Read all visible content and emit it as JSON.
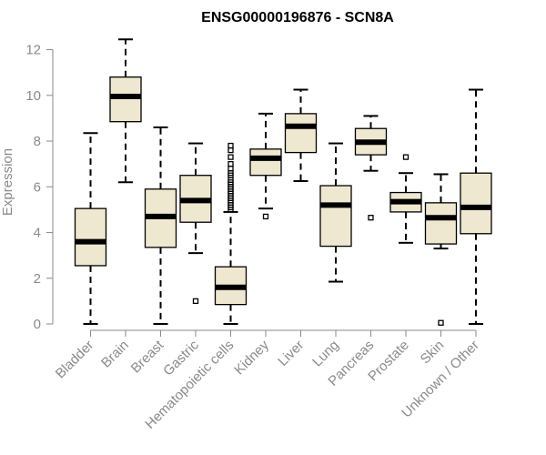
{
  "chart_data": {
    "type": "boxplot",
    "title": "ENSG00000196876 - SCN8A",
    "xlabel": "",
    "ylabel": "Expression",
    "ylim": [
      0,
      12.5
    ],
    "yticks": [
      0,
      2,
      4,
      6,
      8,
      10,
      12
    ],
    "box_fill": "#efe8d0",
    "box_stroke": "#000000",
    "axis_color": "#8a8a8a",
    "categories": [
      "Bladder",
      "Brain",
      "Breast",
      "Gastric",
      "Hematopoietic cells",
      "Kidney",
      "Liver",
      "Lung",
      "Pancreas",
      "Prostate",
      "Skin",
      "Unknown / Other"
    ],
    "boxes": [
      {
        "name": "Bladder",
        "min": 0,
        "q1": 2.55,
        "median": 3.6,
        "q3": 5.05,
        "max": 8.35,
        "outliers": []
      },
      {
        "name": "Brain",
        "min": 6.2,
        "q1": 8.85,
        "median": 9.95,
        "q3": 10.8,
        "max": 12.45,
        "outliers": []
      },
      {
        "name": "Breast",
        "min": 0,
        "q1": 3.35,
        "median": 4.7,
        "q3": 5.9,
        "max": 8.6,
        "outliers": []
      },
      {
        "name": "Gastric",
        "min": 3.1,
        "q1": 4.45,
        "median": 5.4,
        "q3": 6.5,
        "max": 7.9,
        "outliers": [
          1.0
        ]
      },
      {
        "name": "Hematopoietic cells",
        "min": 0,
        "q1": 0.85,
        "median": 1.6,
        "q3": 2.5,
        "max": 4.9,
        "outliers": [
          5.0,
          5.1,
          5.2,
          5.3,
          5.4,
          5.5,
          5.6,
          5.7,
          5.8,
          5.9,
          6.0,
          6.1,
          6.2,
          6.3,
          6.5,
          6.6,
          6.8,
          7.0,
          7.3,
          7.6,
          7.8
        ]
      },
      {
        "name": "Kidney",
        "min": 5.05,
        "q1": 6.5,
        "median": 7.25,
        "q3": 7.65,
        "max": 9.2,
        "outliers": [
          4.7
        ]
      },
      {
        "name": "Liver",
        "min": 6.25,
        "q1": 7.5,
        "median": 8.65,
        "q3": 9.2,
        "max": 10.25,
        "outliers": []
      },
      {
        "name": "Lung",
        "min": 1.85,
        "q1": 3.4,
        "median": 5.2,
        "q3": 6.05,
        "max": 7.9,
        "outliers": []
      },
      {
        "name": "Pancreas",
        "min": 6.7,
        "q1": 7.4,
        "median": 7.95,
        "q3": 8.55,
        "max": 9.1,
        "outliers": [
          4.65
        ]
      },
      {
        "name": "Prostate",
        "min": 3.55,
        "q1": 4.9,
        "median": 5.35,
        "q3": 5.75,
        "max": 6.6,
        "outliers": [
          7.3
        ]
      },
      {
        "name": "Skin",
        "min": 3.3,
        "q1": 3.5,
        "median": 4.65,
        "q3": 5.3,
        "max": 6.55,
        "outliers": [
          0.05
        ]
      },
      {
        "name": "Unknown / Other",
        "min": 0,
        "q1": 3.95,
        "median": 5.1,
        "q3": 6.6,
        "max": 10.25,
        "outliers": []
      }
    ]
  }
}
